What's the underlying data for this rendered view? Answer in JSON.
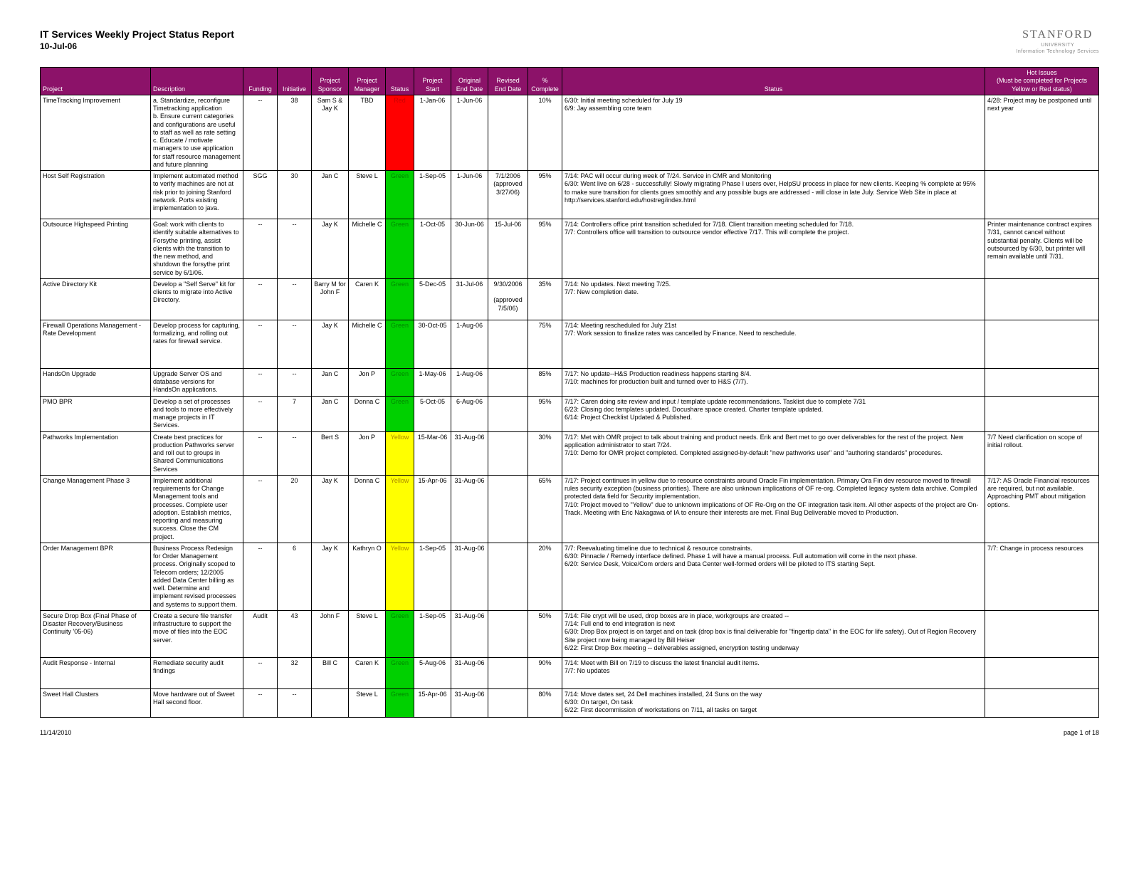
{
  "header": {
    "title": "IT Services Weekly Project Status Report",
    "date": "10-Jul-06",
    "brand": "STANFORD",
    "brand_sub": "UNIVERSITY",
    "brand_sub2": "Information Technology Services"
  },
  "columns": {
    "project": "Project",
    "desc": "Description",
    "funding": "Funding",
    "initiative": "Initiative",
    "sponsor": "Project Sponsor",
    "manager": "Project Manager",
    "status": "Status",
    "start": "Project Start",
    "end": "Original End Date",
    "revised": "Revised End Date",
    "complete": "% Complete",
    "stattext": "Status",
    "hot": "Hot Issues\n(Must be completed for Projects Yellow or Red status)"
  },
  "rows": [
    {
      "project": "TimeTracking Improvement",
      "desc": "a. Standardize, reconfigure Timetracking application\nb. Ensure current categories and configurations are useful to staff as well as rate setting\nc. Educate / motivate managers to use application for staff resource management and future planning",
      "funding": "--",
      "init": "38",
      "sponsor": "Sam S & Jay K",
      "manager": "TBD",
      "status": "Red",
      "status_class": "status-red",
      "start": "1-Jan-06",
      "end": "1-Jun-06",
      "rev": "",
      "comp": "10%",
      "stattext": "6/30: Initial meeting scheduled for July 19\n6/9: Jay assembling core team",
      "hot": "4/28: Project may be postponed until next year"
    },
    {
      "project": "Host Self Registration",
      "desc": "Implement automated method to verify machines are not at risk prior to joining Stanford network. Ports existing implementation to java.",
      "funding": "SGG",
      "init": "30",
      "sponsor": "Jan C",
      "manager": "Steve L",
      "status": "Green",
      "status_class": "status-green",
      "start": "1-Sep-05",
      "end": "1-Jun-06",
      "rev": "7/1/2006\n(approved 3/27/06)",
      "comp": "95%",
      "stattext": "7/14:  PAC will occur during week of 7/24.  Service in CMR and Monitoring\n6/30:  Went live on 6/28 - successfully!  Slowly migrating Phase I users over, HelpSU process in place for new clients. Keeping % complete at 95% to make sure transition for clients goes smoothly and any possible bugs are addressed - will close in late July. Service Web Site in place at http://services.stanford.edu/hostreg/index.html",
      "hot": ""
    },
    {
      "project": "Outsource Highspeed Printing",
      "desc": "Goal: work with clients to identify suitable alternatives to Forsythe printing, assist clients with the transition to the new method, and shutdown the forsythe print service by 6/1/06.",
      "funding": "--",
      "init": "--",
      "sponsor": "Jay K",
      "manager": "Michelle C",
      "status": "Green",
      "status_class": "status-green",
      "start": "1-Oct-05",
      "end": "30-Jun-06",
      "rev": "15-Jul-06",
      "comp": "95%",
      "stattext": "7/14: Controllers office print transition scheduled for 7/18. Client transition meeting scheduled for 7/18.\n7/7: Controllers office will transition to outsource vendor effective 7/17. This will complete the project.",
      "hot": "Printer maintenance contract expires 7/31, cannot cancel without substantial penalty. Clients will be outsourced by 6/30, but printer will remain available until 7/31."
    },
    {
      "project": "Active Directory Kit",
      "desc": "Develop a \"Self Serve\" kit for clients to migrate into Active Directory.",
      "funding": "--",
      "init": "--",
      "sponsor": "Barry M for John F",
      "manager": "Caren K",
      "status": "Green",
      "status_class": "status-green",
      "start": "5-Dec-05",
      "end": "31-Jul-06",
      "rev": "9/30/2006\n\n(approved 7/5/06)",
      "comp": "35%",
      "stattext": "7/14:  No updates. Next meeting 7/25.\n7/7:  New completion date.",
      "hot": ""
    },
    {
      "project": "Firewall Operations Management - Rate Development",
      "desc": "Develop process for capturing, formalizing, and rolling out rates for firewall service.",
      "funding": "--",
      "init": "--",
      "sponsor": "Jay K",
      "manager": "Michelle C",
      "status": "Green",
      "status_class": "status-green",
      "start": "30-Oct-05",
      "end": "1-Aug-06",
      "rev": "",
      "comp": "75%",
      "stattext": "7/14: Meeting rescheduled for July 21st\n7/7: Work session to finalize rates was cancelled by Finance. Need to reschedule.",
      "hot": ""
    },
    {
      "project": "HandsOn Upgrade",
      "desc": "Upgrade Server OS and database versions for HandsOn applications.",
      "funding": "--",
      "init": "--",
      "sponsor": "Jan C",
      "manager": "Jon P",
      "status": "Green",
      "status_class": "status-green",
      "start": "1-May-06",
      "end": "1-Aug-06",
      "rev": "",
      "comp": "85%",
      "stattext": "7/17: No update--H&S Production readiness happens starting 8/4.\n7/10: machines for production built and turned over to H&S (7/7).",
      "hot": ""
    },
    {
      "project": "PMO BPR",
      "desc": "Develop a set of processes and tools to more effectively manage projects in IT Services.",
      "funding": "--",
      "init": "7",
      "sponsor": "Jan C",
      "manager": "Donna C",
      "status": "Green",
      "status_class": "status-green",
      "start": "5-Oct-05",
      "end": "6-Aug-06",
      "rev": "",
      "comp": "95%",
      "stattext": "7/17: Caren doing site review and input / template update recommendations.  Tasklist due to complete 7/31\n6/23: Closing doc templates updated.  Docushare space created. Charter template updated.\n6/14: Project Checklist Updated & Published.",
      "hot": ""
    },
    {
      "project": "Pathworks Implementation",
      "desc": "Create best practices for production Pathworks server and roll out to groups in Shared Communications Services",
      "funding": "--",
      "init": "--",
      "sponsor": "Bert S",
      "manager": "Jon P",
      "status": "Yellow",
      "status_class": "status-yellow",
      "start": "15-Mar-06",
      "end": "31-Aug-06",
      "rev": "",
      "comp": "30%",
      "stattext": "7/17: Met with OMR project to talk about training and product needs.  Erik and Bert met to go over deliverables for the rest of the project.  New application administrator to start 7/24.\n7/10: Demo for OMR project completed.  Completed assigned-by-default \"new pathworks user\" and \"authoring standards\" procedures.",
      "hot": "7/7 Need clarification on scope of initial rollout."
    },
    {
      "project": "Change Management Phase 3",
      "desc": "Implement additional requirements for Change Management tools and processes.  Complete user adoption.  Establish metrics, reporting and measuring success.  Close the CM project.",
      "funding": "--",
      "init": "20",
      "sponsor": "Jay K",
      "manager": "Donna C",
      "status": "Yellow",
      "status_class": "status-yellow",
      "start": "15-Apr-06",
      "end": "31-Aug-06",
      "rev": "",
      "comp": "65%",
      "stattext": "7/17: Project continues in yellow due to resource constraints around Oracle Fin implementation.  Primary Ora Fin dev resource moved to firewall rules security exception (business priorities).  There are also unknown implications of OF re-org.  Completed legacy system data archive.  Compiled protected data field for Security implementation.\n7/10:  Project moved to \"Yellow\" due to unknown implications of OF Re-Org on the OF integration task item.  All other aspects of the project are On-Track.  Meeting with Eric Nakagawa of IA to ensure their interests are met.  Final Bug Deliverable moved to Production.",
      "hot": "7/17: AS Oracle Financial resources are required, but not available. Approaching PMT about mitigation options."
    },
    {
      "project": "Order Management BPR",
      "desc": "Business Process Redesign for Order Management process.  Originally scoped to Telecom orders; 12/2005 added Data Center billing as well.  Determine and implement revised processes and systems to support them.",
      "funding": "--",
      "init": "6",
      "sponsor": "Jay K",
      "manager": "Kathryn O",
      "status": "Yellow",
      "status_class": "status-yellow",
      "start": "1-Sep-05",
      "end": "31-Aug-06",
      "rev": "",
      "comp": "20%",
      "stattext": "7/7: Reevaluating timeline due to technical & resource constraints.\n6/30: Pinnacle / Remedy interface defined.  Phase 1 will have a manual process.  Full automation will come in the next phase.\n6/20: Service Desk, Voice/Com orders and Data Center well-formed orders will be piloted to ITS starting Sept.",
      "hot": "7/7: Change in process resources"
    },
    {
      "project": "Secure Drop Box (Final Phase of Disaster Recovery/Business Continuity '05-06)",
      "desc": "Create a secure file transfer infrastructure to support the move of files into the EOC server.",
      "funding": "Audit",
      "init": "43",
      "sponsor": "John F",
      "manager": "Steve L",
      "status": "Green",
      "status_class": "status-green",
      "start": "1-Sep-05",
      "end": "31-Aug-06",
      "rev": "",
      "comp": "50%",
      "stattext": "7/14:  File crypt will be used, drop boxes are in place, workgroups are created --\n7/14:  Full end to end integration is next\n6/30:  Drop Box project is on target and on task (drop box is final deliverable for \"fingertip data\" in the EOC for life safety). Out of Region Recovery Site project now being managed by Bill Heiser\n6/22:  First Drop Box meeting -- deliverables assigned, encryption testing underway",
      "hot": ""
    },
    {
      "project": "Audit Response - Internal",
      "desc": "Remediate security audit findings",
      "funding": "--",
      "init": "32",
      "sponsor": "Bill C",
      "manager": "Caren K",
      "status": "Green",
      "status_class": "status-green",
      "start": "5-Aug-06",
      "end": "31-Aug-06",
      "rev": "",
      "comp": "90%",
      "stattext": "7/14:  Meet with Bill on 7/19 to discuss the latest financial audit items.\n7/7:  No updates",
      "hot": ""
    },
    {
      "project": "Sweet Hall Clusters",
      "desc": "Move hardware out of Sweet Hall second floor.",
      "funding": "--",
      "init": "--",
      "sponsor": "",
      "manager": "Steve L",
      "status": "Green",
      "status_class": "status-green",
      "start": "15-Apr-06",
      "end": "31-Aug-06",
      "rev": "",
      "comp": "80%",
      "stattext": "7/14:  Move dates set, 24 Dell machines installed, 24 Suns on the way\n6/30:  On target, On task\n6/22:  First decommission of workstations on 7/11, all tasks on target",
      "hot": ""
    }
  ],
  "footer": {
    "left": "11/14/2010",
    "right": "page 1 of 18"
  }
}
